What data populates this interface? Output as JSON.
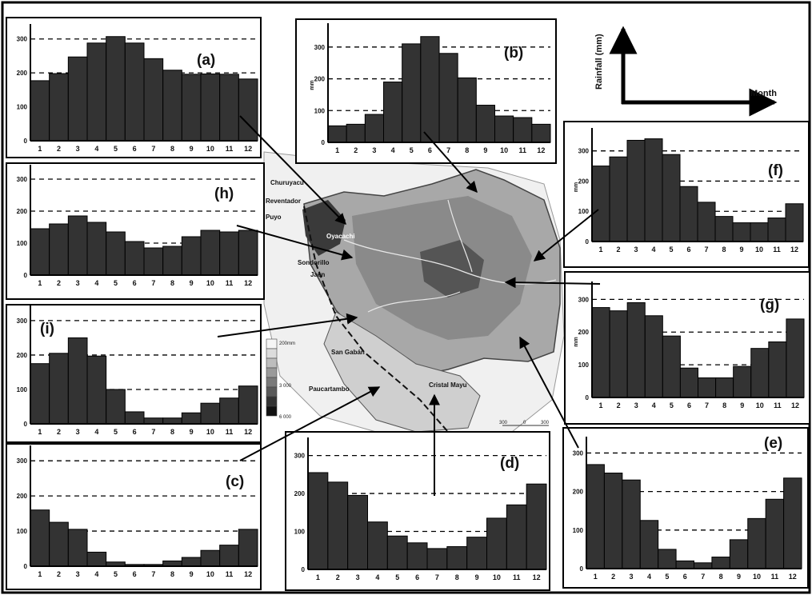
{
  "key": {
    "y_label": "Rainfall (mm)",
    "x_label": "Month"
  },
  "map": {
    "sites": [
      "Churuyacu",
      "Reventador",
      "Puyo",
      "Oyacachi",
      "Sondorillo",
      "Jaen",
      "San Gabán",
      "Paucartambo",
      "Cristal Mayu"
    ],
    "legend": {
      "labels": [
        "200mm",
        "3 000",
        "6 000"
      ]
    },
    "scale_labels": [
      "300",
      "0",
      "300"
    ]
  },
  "chart_data": [
    {
      "type": "bar",
      "title": "(a)",
      "categories": [
        "1",
        "2",
        "3",
        "4",
        "5",
        "6",
        "7",
        "8",
        "9",
        "10",
        "11",
        "12"
      ],
      "values": [
        177,
        198,
        247,
        288,
        307,
        288,
        242,
        208,
        196,
        197,
        196,
        182
      ],
      "ylim": [
        0,
        330
      ],
      "yticks": [
        0,
        100,
        200,
        300
      ],
      "ylabel": "",
      "grid": true
    },
    {
      "type": "bar",
      "title": "(b)",
      "categories": [
        "1",
        "2",
        "3",
        "4",
        "5",
        "6",
        "7",
        "8",
        "9",
        "10",
        "11",
        "12"
      ],
      "values": [
        52,
        57,
        88,
        190,
        310,
        333,
        280,
        203,
        117,
        83,
        78,
        57
      ],
      "ylim": [
        0,
        360
      ],
      "yticks": [
        0,
        100,
        200,
        300
      ],
      "ylabel": "mm",
      "grid": true
    },
    {
      "type": "bar",
      "title": "(c)",
      "categories": [
        "1",
        "2",
        "3",
        "4",
        "5",
        "6",
        "7",
        "8",
        "9",
        "10",
        "11",
        "12"
      ],
      "values": [
        160,
        125,
        105,
        40,
        12,
        5,
        5,
        15,
        25,
        45,
        60,
        105
      ],
      "ylim": [
        0,
        330
      ],
      "yticks": [
        0,
        100,
        200,
        300
      ],
      "ylabel": "",
      "grid": true
    },
    {
      "type": "bar",
      "title": "(d)",
      "categories": [
        "1",
        "2",
        "3",
        "4",
        "5",
        "6",
        "7",
        "8",
        "9",
        "10",
        "11",
        "12"
      ],
      "values": [
        255,
        230,
        195,
        125,
        88,
        70,
        55,
        60,
        85,
        135,
        170,
        225
      ],
      "ylim": [
        0,
        335
      ],
      "yticks": [
        0,
        100,
        200,
        300
      ],
      "ylabel": "",
      "grid": true
    },
    {
      "type": "bar",
      "title": "(e)",
      "categories": [
        "1",
        "2",
        "3",
        "4",
        "5",
        "6",
        "7",
        "8",
        "9",
        "10",
        "11",
        "12"
      ],
      "values": [
        270,
        248,
        230,
        125,
        50,
        20,
        15,
        30,
        75,
        130,
        180,
        235
      ],
      "ylim": [
        0,
        330
      ],
      "yticks": [
        0,
        100,
        200,
        300
      ],
      "ylabel": "",
      "grid": true
    },
    {
      "type": "bar",
      "title": "(f)",
      "categories": [
        "1",
        "2",
        "3",
        "4",
        "5",
        "6",
        "7",
        "8",
        "9",
        "10",
        "11",
        "12"
      ],
      "values": [
        250,
        280,
        335,
        340,
        288,
        182,
        130,
        83,
        62,
        62,
        78,
        125
      ],
      "ylim": [
        0,
        360
      ],
      "yticks": [
        0,
        100,
        200,
        300
      ],
      "ylabel": "mm",
      "grid": true
    },
    {
      "type": "bar",
      "title": "(g)",
      "categories": [
        "1",
        "2",
        "3",
        "4",
        "5",
        "6",
        "7",
        "8",
        "9",
        "10",
        "11",
        "12"
      ],
      "values": [
        275,
        265,
        290,
        250,
        188,
        90,
        60,
        60,
        95,
        150,
        170,
        240
      ],
      "ylim": [
        0,
        340
      ],
      "yticks": [
        0,
        100,
        200,
        300
      ],
      "ylabel": "mm",
      "grid": true
    },
    {
      "type": "bar",
      "title": "(h)",
      "categories": [
        "1",
        "2",
        "3",
        "4",
        "5",
        "6",
        "7",
        "8",
        "9",
        "10",
        "11",
        "12"
      ],
      "values": [
        145,
        160,
        185,
        165,
        135,
        105,
        85,
        90,
        120,
        140,
        135,
        140
      ],
      "ylim": [
        0,
        330
      ],
      "yticks": [
        0,
        100,
        200,
        300
      ],
      "ylabel": "",
      "grid": true
    },
    {
      "type": "bar",
      "title": "(i)",
      "categories": [
        "1",
        "2",
        "3",
        "4",
        "5",
        "6",
        "7",
        "8",
        "9",
        "10",
        "11",
        "12"
      ],
      "values": [
        175,
        205,
        250,
        197,
        100,
        35,
        17,
        17,
        32,
        60,
        75,
        110
      ],
      "ylim": [
        0,
        330
      ],
      "yticks": [
        0,
        100,
        200,
        300
      ],
      "ylabel": "",
      "grid": true
    }
  ]
}
